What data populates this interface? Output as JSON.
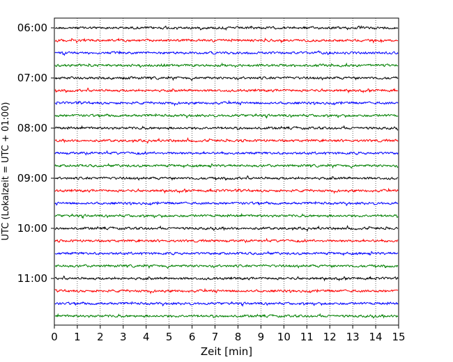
{
  "chart_data": {
    "type": "line",
    "xlabel": "Zeit  [min]",
    "ylabel": "UTC (Lokalzeit = UTC + 01:00)",
    "xlim": [
      0,
      15
    ],
    "xticks": [
      "0",
      "1",
      "2",
      "3",
      "4",
      "5",
      "6",
      "7",
      "8",
      "9",
      "10",
      "11",
      "12",
      "13",
      "14",
      "15"
    ],
    "yticks": [
      "06:00",
      "07:00",
      "08:00",
      "09:00",
      "10:00",
      "11:00"
    ],
    "trace_interval_minutes": 15,
    "first_trace": "06:00",
    "last_trace": "11:45",
    "trace_count": 24,
    "trace_colors": [
      "#000000",
      "#ff0000",
      "#0000ff",
      "#008000"
    ],
    "grid": "vertical-dotted",
    "legend": "none"
  }
}
